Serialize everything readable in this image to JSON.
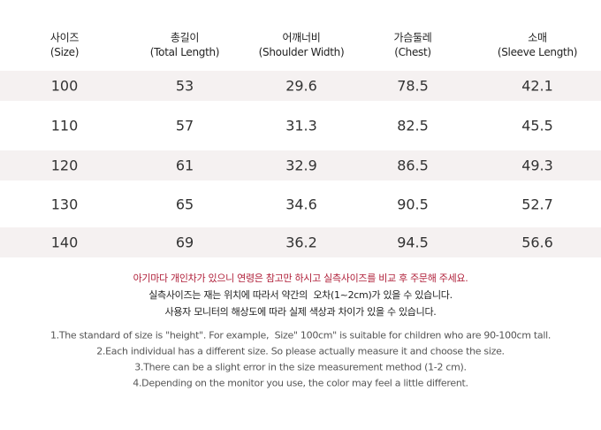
{
  "table": {
    "header": [
      {
        "ko": "사이즈",
        "en": "(Size)"
      },
      {
        "ko": "총길이",
        "en": "(Total Length)"
      },
      {
        "ko": "어깨너비",
        "en": "(Shoulder Width)"
      },
      {
        "ko": "가슴둘레",
        "en": "(Chest)"
      },
      {
        "ko": "소매",
        "en": "(Sleeve Length)"
      }
    ],
    "rows": [
      [
        "100",
        "53",
        "29.6",
        "78.5",
        "42.1"
      ],
      [
        "110",
        "57",
        "31.3",
        "82.5",
        "45.5"
      ],
      [
        "120",
        "61",
        "32.9",
        "86.5",
        "49.3"
      ],
      [
        "130",
        "65",
        "34.6",
        "90.5",
        "52.7"
      ],
      [
        "140",
        "69",
        "36.2",
        "94.5",
        "56.6"
      ]
    ]
  },
  "notes_ko": [
    "아기마다 개인차가 있으니 연령은 참고만 하시고 실측사이즈를 비교 후 주문해 주세요.",
    "실측사이즈는 재는 위치에 따라서 약간의  오차(1~2cm)가 있을 수 있습니다.",
    "사용자 모니터의 해상도에 따라 실제 색상과 차이가 있을 수 있습니다."
  ],
  "notes_en": [
    "1.The standard of size is \"height\". For example,  Size\" 100cm\" is suitable for children who are 90-100cm tall.",
    "2.Each individual has a different size. So please actually measure it and choose the size.",
    "3.There can be a slight error in the size measurement method (1-2 cm).",
    "4.Depending on the monitor you use, the color may feel a little different."
  ]
}
